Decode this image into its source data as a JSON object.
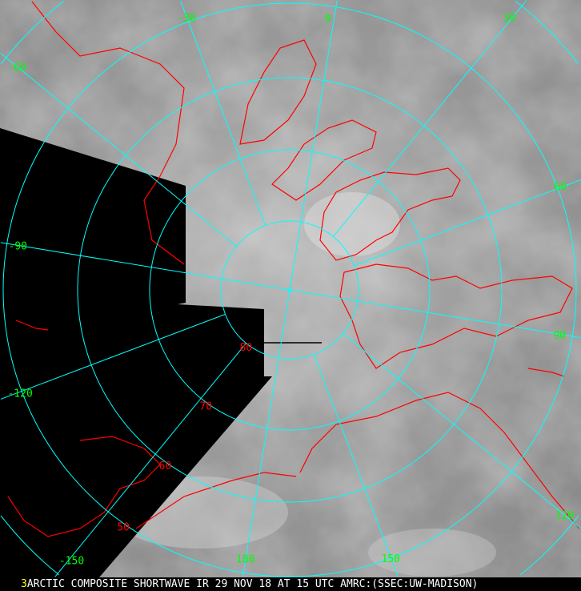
{
  "caption": {
    "frame_number": "3",
    "text": "ARCTIC COMPOSITE SHORTWAVE IR 29 NOV 18 AT 15 UTC AMRC:(SSEC:UW-MADISON)"
  },
  "colors": {
    "grid": "#00ffff",
    "coastline": "#ff0000",
    "longitude_labels": "#00ff00",
    "latitude_labels": "#ff0000",
    "caption_frame": "#ffff00",
    "no_data": "#000000"
  },
  "projection": "polar stereographic, north pole centered",
  "latitude_circles": [
    {
      "lat": 80,
      "label": "80"
    },
    {
      "lat": 70,
      "label": "70"
    },
    {
      "lat": 60,
      "label": "60"
    },
    {
      "lat": 50,
      "label": "50"
    },
    {
      "lat": 40,
      "label": ""
    },
    {
      "lat": 30,
      "label": ""
    }
  ],
  "longitude_lines": [
    {
      "lon": -180,
      "label": "180"
    },
    {
      "lon": -150,
      "label": "-150"
    },
    {
      "lon": -120,
      "label": "-120"
    },
    {
      "lon": -90,
      "label": "-90"
    },
    {
      "lon": -60,
      "label": "-60"
    },
    {
      "lon": -30,
      "label": "-30"
    },
    {
      "lon": 0,
      "label": "0"
    },
    {
      "lon": 30,
      "label": "30"
    },
    {
      "lon": 60,
      "label": "60"
    },
    {
      "lon": 90,
      "label": "90"
    },
    {
      "lon": 120,
      "label": "120"
    },
    {
      "lon": 150,
      "label": "150"
    }
  ]
}
